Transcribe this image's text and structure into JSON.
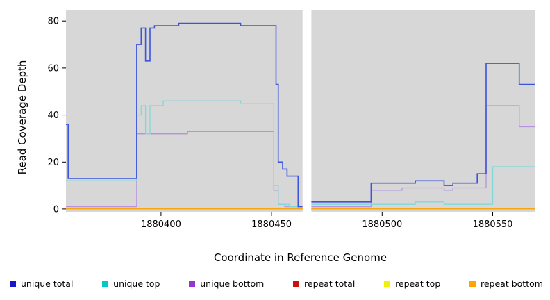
{
  "chart_data": {
    "type": "line",
    "subtype": "step-after",
    "title": "",
    "xlabel": "Coordinate in Reference Genome",
    "ylabel": "Read Coverage Depth",
    "xlim": [
      1880357,
      1880569
    ],
    "ylim": [
      -1.2,
      84.5
    ],
    "xticks": [
      1880400,
      1880450,
      1880500,
      1880550
    ],
    "yticks": [
      0,
      20,
      40,
      60,
      80
    ],
    "grid": false,
    "panel_bg": "#d7d7d7",
    "panels": [
      [
        1880357,
        1880464
      ],
      [
        1880468,
        1880569
      ]
    ],
    "gap_region": [
      1880464,
      1880468
    ],
    "legend_position": "bottom",
    "legend": [
      {
        "label": "unique total",
        "color": "#1515cf"
      },
      {
        "label": "unique top",
        "color": "#00c8c8"
      },
      {
        "label": "unique bottom",
        "color": "#9237d3"
      },
      {
        "label": "repeat total",
        "color": "#cc1111"
      },
      {
        "label": "repeat top",
        "color": "#f2f200"
      },
      {
        "label": "repeat bottom",
        "color": "#ffa500"
      }
    ],
    "series": [
      {
        "name": "repeat total",
        "line_color": "#d01010",
        "width": 1.2,
        "segments": [
          {
            "points": [
              [
                1880357,
                0
              ]
            ],
            "end": 1880464
          },
          {
            "points": [
              [
                1880468,
                0
              ]
            ],
            "end": 1880569
          }
        ]
      },
      {
        "name": "repeat top",
        "line_color": "#f0f000",
        "width": 1.2,
        "segments": [
          {
            "points": [
              [
                1880357,
                0
              ]
            ],
            "end": 1880464
          },
          {
            "points": [
              [
                1880468,
                0
              ]
            ],
            "end": 1880569
          }
        ]
      },
      {
        "name": "repeat bottom",
        "line_color": "#ffa500",
        "width": 1.3,
        "segments": [
          {
            "points": [
              [
                1880357,
                0
              ]
            ],
            "end": 1880464
          },
          {
            "points": [
              [
                1880468,
                0
              ]
            ],
            "end": 1880569
          }
        ]
      },
      {
        "name": "unique bottom",
        "line_color": "#b791dc",
        "width": 1.3,
        "segments": [
          {
            "points": [
              [
                1880357,
                1
              ],
              [
                1880389,
                32
              ],
              [
                1880412,
                33
              ],
              [
                1880451,
                8
              ],
              [
                1880453,
                2
              ],
              [
                1880456,
                1
              ]
            ],
            "end": 1880462
          },
          {
            "points": [
              [
                1880468,
                1
              ],
              [
                1880495,
                8
              ],
              [
                1880509,
                9
              ],
              [
                1880528,
                8
              ],
              [
                1880532,
                9
              ],
              [
                1880547,
                44
              ],
              [
                1880562,
                35
              ]
            ],
            "end": 1880569
          }
        ]
      },
      {
        "name": "unique top",
        "line_color": "#7fd8d8",
        "width": 1.3,
        "segments": [
          {
            "points": [
              [
                1880357,
                12
              ],
              [
                1880389,
                40
              ],
              [
                1880391,
                44
              ],
              [
                1880393,
                32
              ],
              [
                1880395,
                44
              ],
              [
                1880401,
                46
              ],
              [
                1880436,
                45
              ],
              [
                1880451,
                10
              ],
              [
                1880453,
                2
              ],
              [
                1880458,
                1
              ]
            ],
            "end": 1880462
          },
          {
            "points": [
              [
                1880468,
                2
              ],
              [
                1880515,
                3
              ],
              [
                1880528,
                2
              ],
              [
                1880550,
                18
              ]
            ],
            "end": 1880569
          }
        ]
      },
      {
        "name": "unique total",
        "line_color": "#3c53de",
        "width": 1.6,
        "segments": [
          {
            "points": [
              [
                1880357,
                36
              ],
              [
                1880358,
                13
              ],
              [
                1880389,
                70
              ],
              [
                1880391,
                77
              ],
              [
                1880393,
                63
              ],
              [
                1880395,
                77
              ],
              [
                1880397,
                78
              ],
              [
                1880408,
                79
              ],
              [
                1880436,
                78
              ],
              [
                1880452,
                53
              ],
              [
                1880453,
                20
              ],
              [
                1880455,
                17
              ],
              [
                1880457,
                14
              ],
              [
                1880462,
                1
              ]
            ],
            "end": 1880464
          },
          {
            "points": [
              [
                1880468,
                3
              ],
              [
                1880495,
                11
              ],
              [
                1880515,
                12
              ],
              [
                1880528,
                10
              ],
              [
                1880532,
                11
              ],
              [
                1880543,
                15
              ],
              [
                1880547,
                62
              ],
              [
                1880562,
                53
              ]
            ],
            "end": 1880569
          }
        ]
      }
    ]
  }
}
